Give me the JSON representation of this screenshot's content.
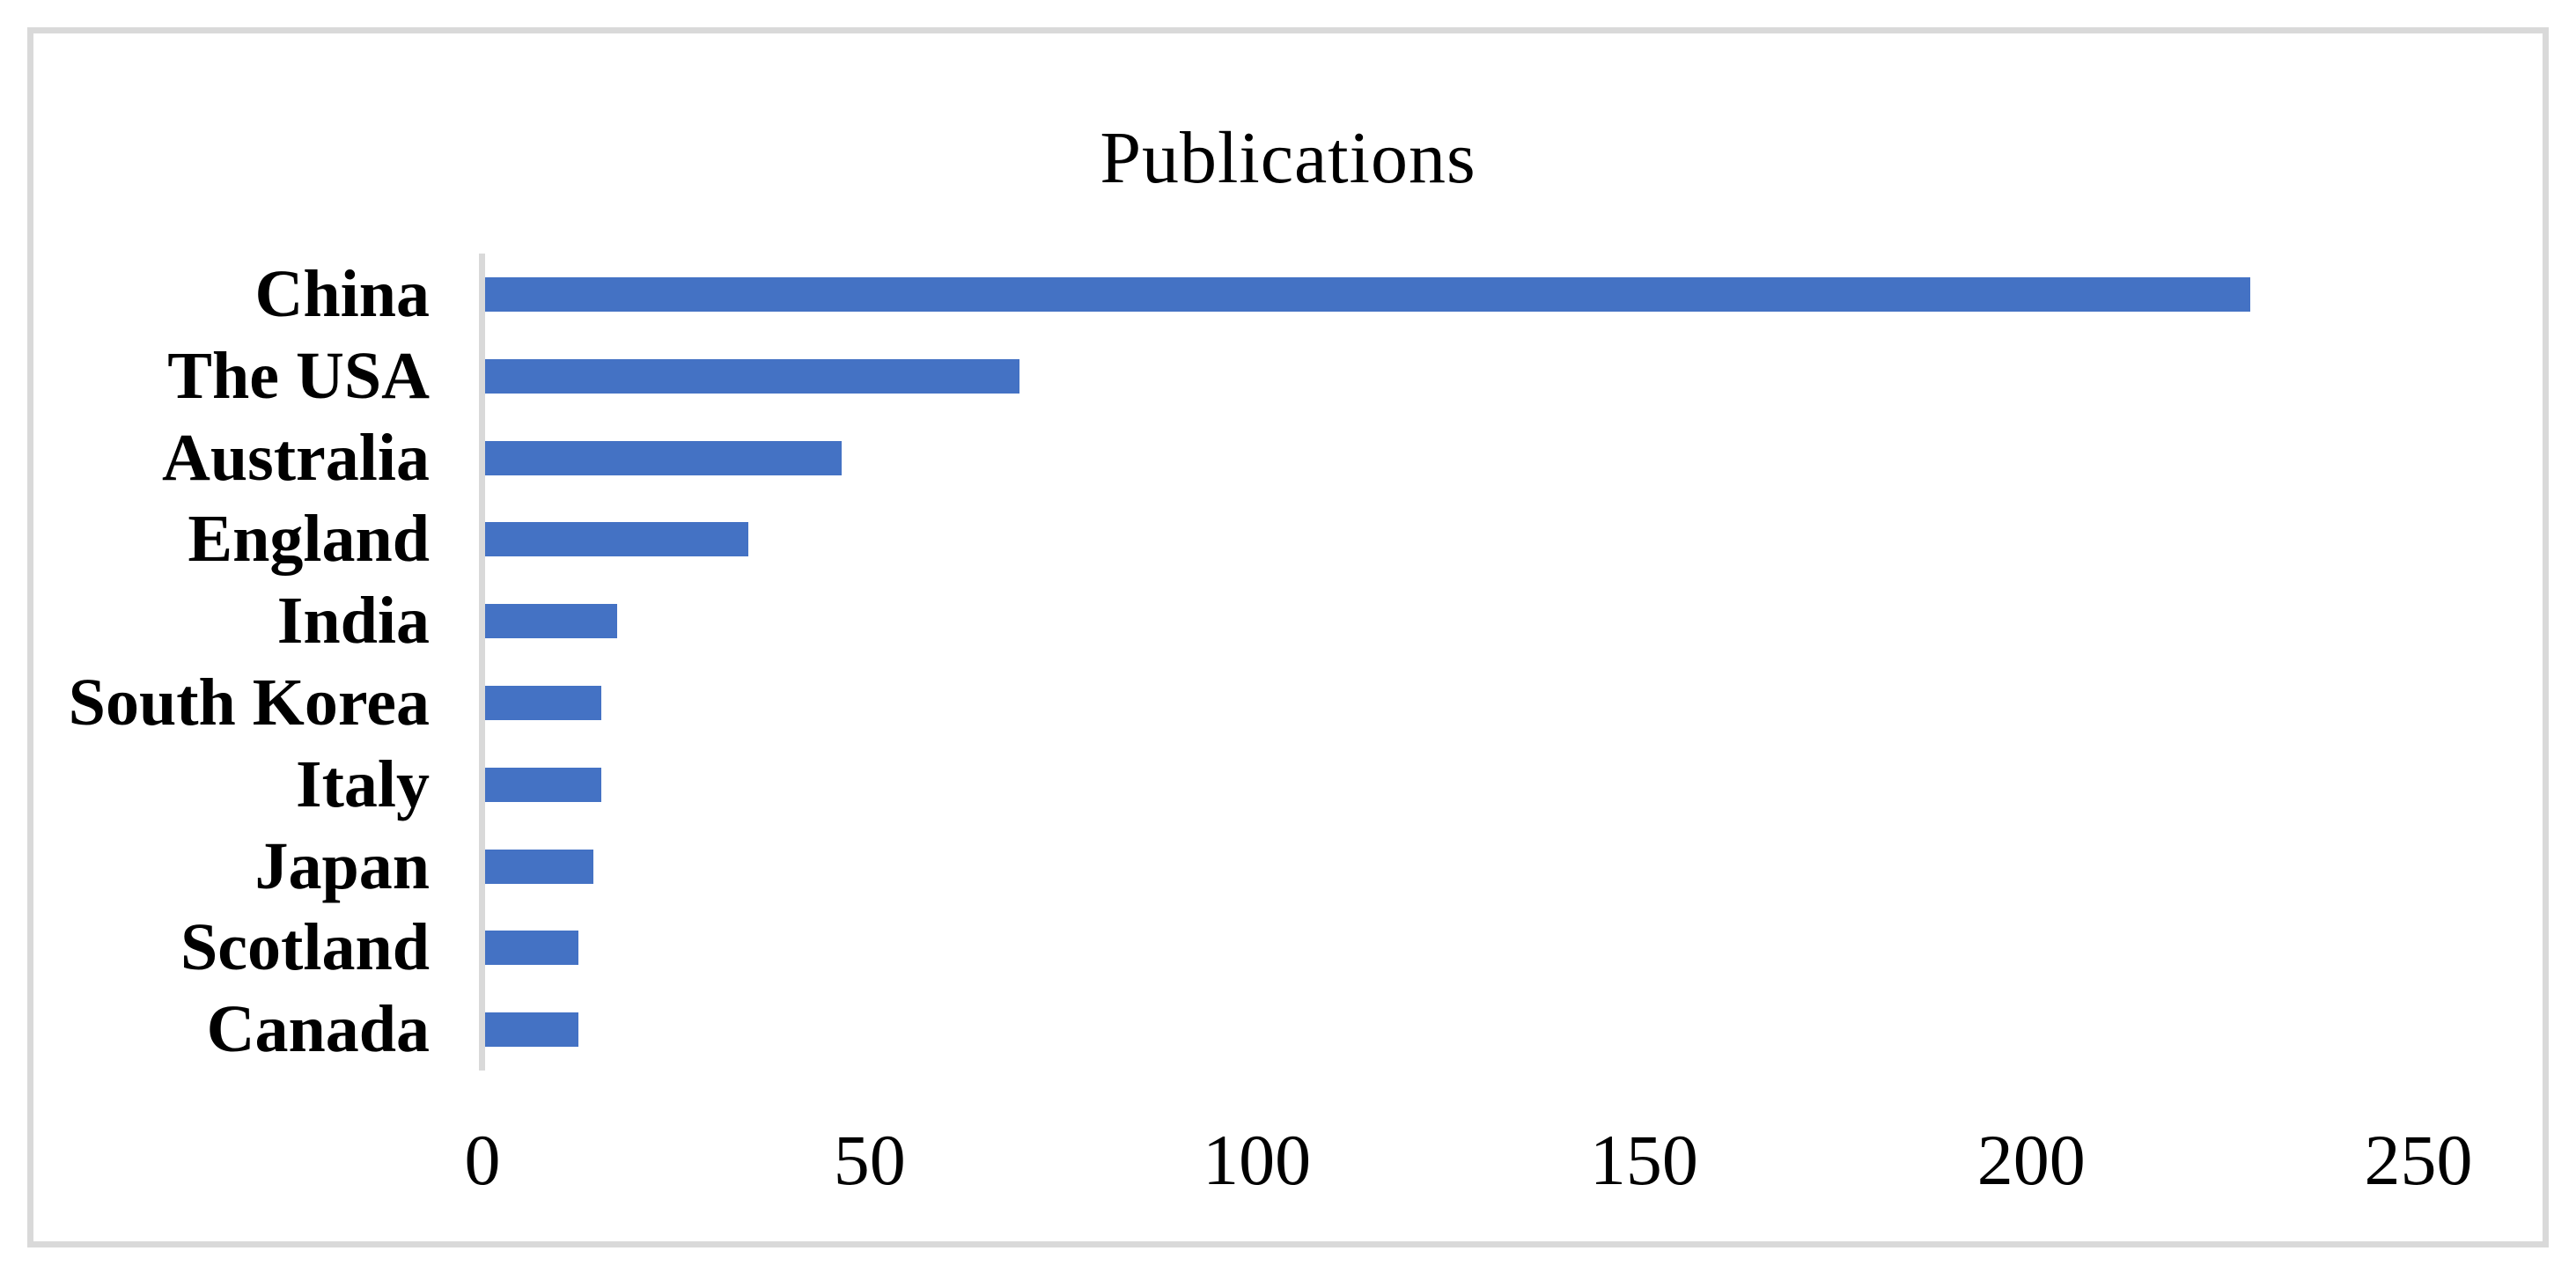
{
  "figure": {
    "title": "Publications",
    "bar_color": "#4472C4",
    "frame_color": "#D9D9D9",
    "text_color": "#000000"
  },
  "chart_data": {
    "type": "bar",
    "orientation": "horizontal",
    "title": "Publications",
    "categories": [
      "China",
      "The USA",
      "Australia",
      "England",
      "India",
      "South Korea",
      "Italy",
      "Japan",
      "Scotland",
      "Canada"
    ],
    "values": [
      228,
      69,
      46,
      34,
      17,
      15,
      15,
      14,
      12,
      12
    ],
    "series": [
      {
        "name": "Publications",
        "values": [
          228,
          69,
          46,
          34,
          17,
          15,
          15,
          14,
          12,
          12
        ]
      }
    ],
    "xlabel": "",
    "ylabel": "",
    "xlim": [
      0,
      250
    ],
    "xticks": [
      0,
      50,
      100,
      150,
      200,
      250
    ],
    "grid": false,
    "legend": false,
    "bar_color": "#4472C4",
    "axis_line_color": "#D9D9D9"
  }
}
